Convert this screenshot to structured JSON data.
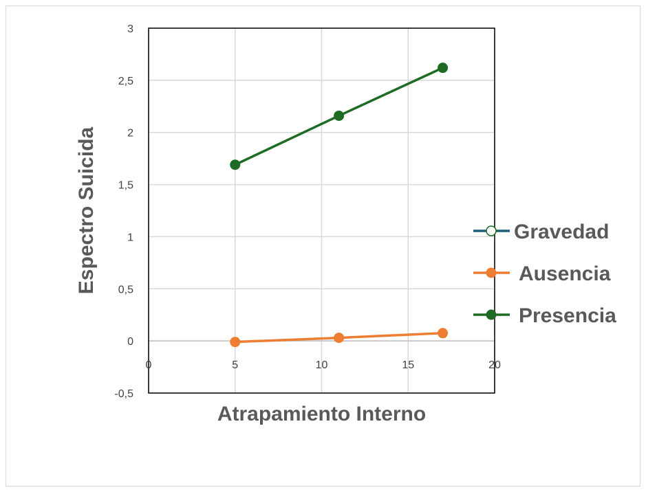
{
  "chart_data": {
    "type": "line",
    "xlabel": "Atrapamiento Interno",
    "ylabel": "Espectro Suicida",
    "xlim": [
      0,
      20
    ],
    "ylim": [
      -0.5,
      3
    ],
    "x_ticks": [
      0,
      5,
      10,
      15,
      20
    ],
    "x_tick_labels": [
      "0",
      "5",
      "10",
      "15",
      "20"
    ],
    "y_ticks": [
      -0.5,
      0,
      0.5,
      1,
      1.5,
      2,
      2.5,
      3
    ],
    "y_tick_labels": [
      "-0,5",
      "0",
      "0,5",
      "1",
      "1,5",
      "2",
      "2,5",
      "3"
    ],
    "grid": true,
    "legend_position": "right",
    "series": [
      {
        "name": "Gravedad",
        "color": "#1f5f7a",
        "marker": "open-circle",
        "x": [],
        "y": []
      },
      {
        "name": "Ausencia",
        "color": "#ed7d31",
        "marker": "filled-circle",
        "x": [
          5,
          11,
          17
        ],
        "y": [
          -0.01,
          0.03,
          0.075
        ]
      },
      {
        "name": "Presencia",
        "color": "#1e6b24",
        "marker": "filled-circle",
        "x": [
          5,
          11,
          17
        ],
        "y": [
          1.69,
          2.16,
          2.62
        ]
      }
    ]
  }
}
